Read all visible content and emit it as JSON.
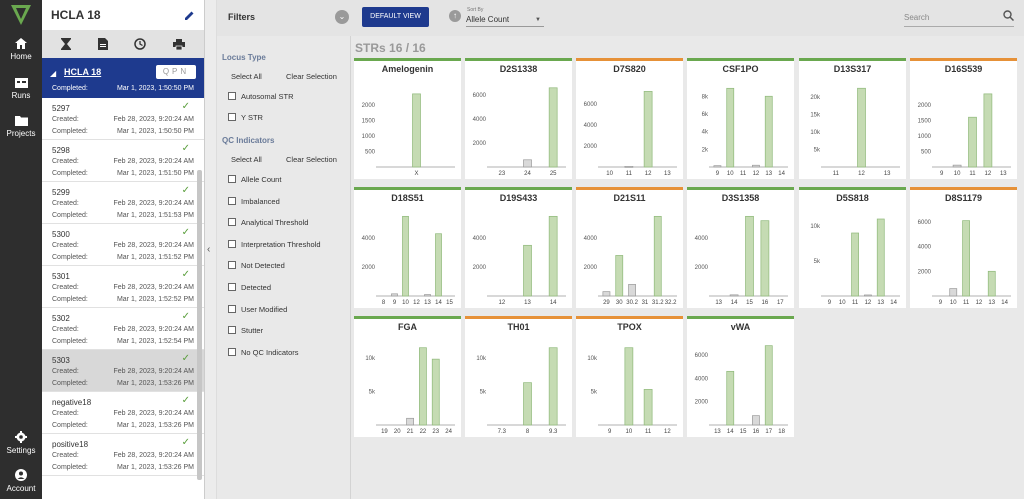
{
  "nav": {
    "items": [
      {
        "label": "Home",
        "icon": "home-icon"
      },
      {
        "label": "Runs",
        "icon": "runs-icon"
      },
      {
        "label": "Projects",
        "icon": "folder-icon"
      },
      {
        "label": "Settings",
        "icon": "gear-icon"
      },
      {
        "label": "Account",
        "icon": "account-icon"
      }
    ]
  },
  "sidebar": {
    "title": "HCLA 18",
    "selected_case": {
      "name": "HCLA 18",
      "badge": "QPN",
      "completed_label": "Completed:",
      "completed_date": "Mar 1, 2023, 1:50:50 PM"
    },
    "cases": [
      {
        "name": "5297",
        "created_label": "Created:",
        "created": "Feb 28, 2023, 9:20:24 AM",
        "completed_label": "Completed:",
        "completed": "Mar 1, 2023, 1:50:50 PM",
        "selected": false
      },
      {
        "name": "5298",
        "created_label": "Created:",
        "created": "Feb 28, 2023, 9:20:24 AM",
        "completed_label": "Completed:",
        "completed": "Mar 1, 2023, 1:51:50 PM",
        "selected": false
      },
      {
        "name": "5299",
        "created_label": "Created:",
        "created": "Feb 28, 2023, 9:20:24 AM",
        "completed_label": "Completed:",
        "completed": "Mar 1, 2023, 1:51:53 PM",
        "selected": false
      },
      {
        "name": "5300",
        "created_label": "Created:",
        "created": "Feb 28, 2023, 9:20:24 AM",
        "completed_label": "Completed:",
        "completed": "Mar 1, 2023, 1:51:52 PM",
        "selected": false
      },
      {
        "name": "5301",
        "created_label": "Created:",
        "created": "Feb 28, 2023, 9:20:24 AM",
        "completed_label": "Completed:",
        "completed": "Mar 1, 2023, 1:52:52 PM",
        "selected": false
      },
      {
        "name": "5302",
        "created_label": "Created:",
        "created": "Feb 28, 2023, 9:20:24 AM",
        "completed_label": "Completed:",
        "completed": "Mar 1, 2023, 1:52:54 PM",
        "selected": false
      },
      {
        "name": "5303",
        "created_label": "Created:",
        "created": "Feb 28, 2023, 9:20:24 AM",
        "completed_label": "Completed:",
        "completed": "Mar 1, 2023, 1:53:26 PM",
        "selected": true
      },
      {
        "name": "negative18",
        "created_label": "Created:",
        "created": "Feb 28, 2023, 9:20:24 AM",
        "completed_label": "Completed:",
        "completed": "Mar 1, 2023, 1:53:26 PM",
        "selected": false
      },
      {
        "name": "positive18",
        "created_label": "Created:",
        "created": "Feb 28, 2023, 9:20:24 AM",
        "completed_label": "Completed:",
        "completed": "Mar 1, 2023, 1:53:26 PM",
        "selected": false
      }
    ]
  },
  "topbar": {
    "filters_label": "Filters",
    "default_view": "DEFAULT VIEW",
    "sort_by_label": "Sort By",
    "sort_by_value": "Allele Count",
    "search_placeholder": "Search"
  },
  "filters": {
    "locus_type": {
      "heading": "Locus Type",
      "select_all": "Select All",
      "clear": "Clear Selection",
      "options": [
        "Autosomal STR",
        "Y STR"
      ]
    },
    "qc": {
      "heading": "QC Indicators",
      "select_all": "Select All",
      "clear": "Clear Selection",
      "options": [
        "Allele Count",
        "Imbalanced",
        "Analytical Threshold",
        "Interpretation Threshold",
        "Not Detected",
        "Detected",
        "User Modified",
        "Stutter",
        "No QC Indicators"
      ]
    }
  },
  "main": {
    "strs_label": "STRs",
    "strs_count": "16 / 16"
  },
  "colors": {
    "green": "#6aa84f",
    "orange": "#e69138",
    "bar_fill": "#c5dbb3",
    "bar_stroke": "#8fb97a",
    "navy": "#1e3a8e"
  },
  "loci": [
    {
      "name": "Amelogenin",
      "status": "green",
      "ymax": 2700,
      "yticks": [
        "500",
        "1000",
        "1500",
        "2000"
      ],
      "ytickv": [
        500,
        1000,
        1500,
        2000
      ],
      "alleles": [
        {
          "label": "X",
          "value": 2350,
          "called": true
        }
      ]
    },
    {
      "name": "D2S1338",
      "status": "green",
      "ymax": 7000,
      "yticks": [
        "2000",
        "4000",
        "6000"
      ],
      "ytickv": [
        2000,
        4000,
        6000
      ],
      "alleles": [
        {
          "label": "23",
          "value": 0,
          "called": false
        },
        {
          "label": "24",
          "value": 600,
          "called": false
        },
        {
          "label": "25",
          "value": 6600,
          "called": true
        }
      ]
    },
    {
      "name": "D7S820",
      "status": "orange",
      "ymax": 8000,
      "yticks": [
        "2000",
        "4000",
        "6000"
      ],
      "ytickv": [
        2000,
        4000,
        6000
      ],
      "alleles": [
        {
          "label": "10",
          "value": 0,
          "called": false
        },
        {
          "label": "11",
          "value": 60,
          "called": false
        },
        {
          "label": "12",
          "value": 7200,
          "called": true
        },
        {
          "label": "13",
          "value": 0,
          "called": false
        }
      ]
    },
    {
      "name": "CSF1PO",
      "status": "green",
      "ymax": 9500,
      "yticks": [
        "2k",
        "4k",
        "6k",
        "8k"
      ],
      "ytickv": [
        2000,
        4000,
        6000,
        8000
      ],
      "alleles": [
        {
          "label": "9",
          "value": 150,
          "called": false
        },
        {
          "label": "10",
          "value": 8900,
          "called": true
        },
        {
          "label": "11",
          "value": 0,
          "called": false
        },
        {
          "label": "12",
          "value": 200,
          "called": false
        },
        {
          "label": "13",
          "value": 8000,
          "called": true
        },
        {
          "label": "14",
          "value": 0,
          "called": false
        }
      ]
    },
    {
      "name": "D13S317",
      "status": "green",
      "ymax": 24000,
      "yticks": [
        "5k",
        "10k",
        "15k",
        "20k"
      ],
      "ytickv": [
        5000,
        10000,
        15000,
        20000
      ],
      "alleles": [
        {
          "label": "11",
          "value": 0,
          "called": false
        },
        {
          "label": "12",
          "value": 22500,
          "called": true
        },
        {
          "label": "13",
          "value": 0,
          "called": false
        }
      ]
    },
    {
      "name": "D16S539",
      "status": "orange",
      "ymax": 2700,
      "yticks": [
        "500",
        "1000",
        "1500",
        "2000"
      ],
      "ytickv": [
        500,
        1000,
        1500,
        2000
      ],
      "alleles": [
        {
          "label": "9",
          "value": 0,
          "called": false
        },
        {
          "label": "10",
          "value": 60,
          "called": false
        },
        {
          "label": "11",
          "value": 1600,
          "called": true
        },
        {
          "label": "12",
          "value": 2350,
          "called": true
        },
        {
          "label": "13",
          "value": 0,
          "called": false
        }
      ]
    },
    {
      "name": "D18S51",
      "status": "green",
      "ymax": 5800,
      "yticks": [
        "2000",
        "4000"
      ],
      "ytickv": [
        2000,
        4000
      ],
      "alleles": [
        {
          "label": "8",
          "value": 0,
          "called": false
        },
        {
          "label": "9",
          "value": 150,
          "called": false
        },
        {
          "label": "10",
          "value": 5500,
          "called": true
        },
        {
          "label": "12",
          "value": 0,
          "called": false
        },
        {
          "label": "13",
          "value": 100,
          "called": false
        },
        {
          "label": "14",
          "value": 4300,
          "called": true
        },
        {
          "label": "15",
          "value": 0,
          "called": false
        }
      ]
    },
    {
      "name": "D19S433",
      "status": "green",
      "ymax": 5800,
      "yticks": [
        "2000",
        "4000"
      ],
      "ytickv": [
        2000,
        4000
      ],
      "alleles": [
        {
          "label": "12",
          "value": 0,
          "called": false
        },
        {
          "label": "13",
          "value": 3500,
          "called": true
        },
        {
          "label": "14",
          "value": 5500,
          "called": true
        }
      ]
    },
    {
      "name": "D21S11",
      "status": "orange",
      "ymax": 5800,
      "yticks": [
        "2000",
        "4000"
      ],
      "ytickv": [
        2000,
        4000
      ],
      "alleles": [
        {
          "label": "29",
          "value": 300,
          "called": false
        },
        {
          "label": "30",
          "value": 2800,
          "called": true
        },
        {
          "label": "30.2",
          "value": 800,
          "called": false
        },
        {
          "label": "31",
          "value": 0,
          "called": false
        },
        {
          "label": "31.2",
          "value": 5500,
          "called": true
        },
        {
          "label": "32.2",
          "value": 0,
          "called": false
        }
      ]
    },
    {
      "name": "D3S1358",
      "status": "green",
      "ymax": 5800,
      "yticks": [
        "2000",
        "4000"
      ],
      "ytickv": [
        2000,
        4000
      ],
      "alleles": [
        {
          "label": "13",
          "value": 0,
          "called": false
        },
        {
          "label": "14",
          "value": 80,
          "called": false
        },
        {
          "label": "15",
          "value": 5500,
          "called": true
        },
        {
          "label": "16",
          "value": 5200,
          "called": true
        },
        {
          "label": "17",
          "value": 0,
          "called": false
        }
      ]
    },
    {
      "name": "D5S818",
      "status": "green",
      "ymax": 12000,
      "yticks": [
        "5k",
        "10k"
      ],
      "ytickv": [
        5000,
        10000
      ],
      "alleles": [
        {
          "label": "9",
          "value": 0,
          "called": false
        },
        {
          "label": "10",
          "value": 0,
          "called": false
        },
        {
          "label": "11",
          "value": 9000,
          "called": true
        },
        {
          "label": "12",
          "value": 150,
          "called": false
        },
        {
          "label": "13",
          "value": 11000,
          "called": true
        },
        {
          "label": "14",
          "value": 0,
          "called": false
        }
      ]
    },
    {
      "name": "D8S1179",
      "status": "orange",
      "ymax": 6800,
      "yticks": [
        "2000",
        "4000",
        "6000"
      ],
      "ytickv": [
        2000,
        4000,
        6000
      ],
      "alleles": [
        {
          "label": "9",
          "value": 0,
          "called": false
        },
        {
          "label": "10",
          "value": 600,
          "called": false
        },
        {
          "label": "11",
          "value": 6100,
          "called": true
        },
        {
          "label": "12",
          "value": 0,
          "called": false
        },
        {
          "label": "13",
          "value": 2000,
          "called": true
        },
        {
          "label": "14",
          "value": 0,
          "called": false
        }
      ]
    },
    {
      "name": "FGA",
      "status": "green",
      "ymax": 12500,
      "yticks": [
        "5k",
        "10k"
      ],
      "ytickv": [
        5000,
        10000
      ],
      "alleles": [
        {
          "label": "19",
          "value": 0,
          "called": false
        },
        {
          "label": "20",
          "value": 0,
          "called": false
        },
        {
          "label": "21",
          "value": 1000,
          "called": false
        },
        {
          "label": "22",
          "value": 11500,
          "called": true
        },
        {
          "label": "23",
          "value": 9800,
          "called": true
        },
        {
          "label": "24",
          "value": 0,
          "called": false
        }
      ]
    },
    {
      "name": "TH01",
      "status": "orange",
      "ymax": 12500,
      "yticks": [
        "5k",
        "10k"
      ],
      "ytickv": [
        5000,
        10000
      ],
      "alleles": [
        {
          "label": "7.3",
          "value": 0,
          "called": false
        },
        {
          "label": "8",
          "value": 6300,
          "called": true
        },
        {
          "label": "9.3",
          "value": 11500,
          "called": true
        }
      ]
    },
    {
      "name": "TPOX",
      "status": "orange",
      "ymax": 12500,
      "yticks": [
        "5k",
        "10k"
      ],
      "ytickv": [
        5000,
        10000
      ],
      "alleles": [
        {
          "label": "9",
          "value": 0,
          "called": false
        },
        {
          "label": "10",
          "value": 11500,
          "called": true
        },
        {
          "label": "11",
          "value": 5300,
          "called": true
        },
        {
          "label": "12",
          "value": 0,
          "called": false
        }
      ]
    },
    {
      "name": "vWA",
      "status": "green",
      "ymax": 7200,
      "yticks": [
        "2000",
        "4000",
        "6000"
      ],
      "ytickv": [
        2000,
        4000,
        6000
      ],
      "alleles": [
        {
          "label": "13",
          "value": 0,
          "called": false
        },
        {
          "label": "14",
          "value": 4600,
          "called": true
        },
        {
          "label": "15",
          "value": 0,
          "called": false
        },
        {
          "label": "16",
          "value": 800,
          "called": false
        },
        {
          "label": "17",
          "value": 6800,
          "called": true
        },
        {
          "label": "18",
          "value": 0,
          "called": false
        }
      ]
    }
  ]
}
